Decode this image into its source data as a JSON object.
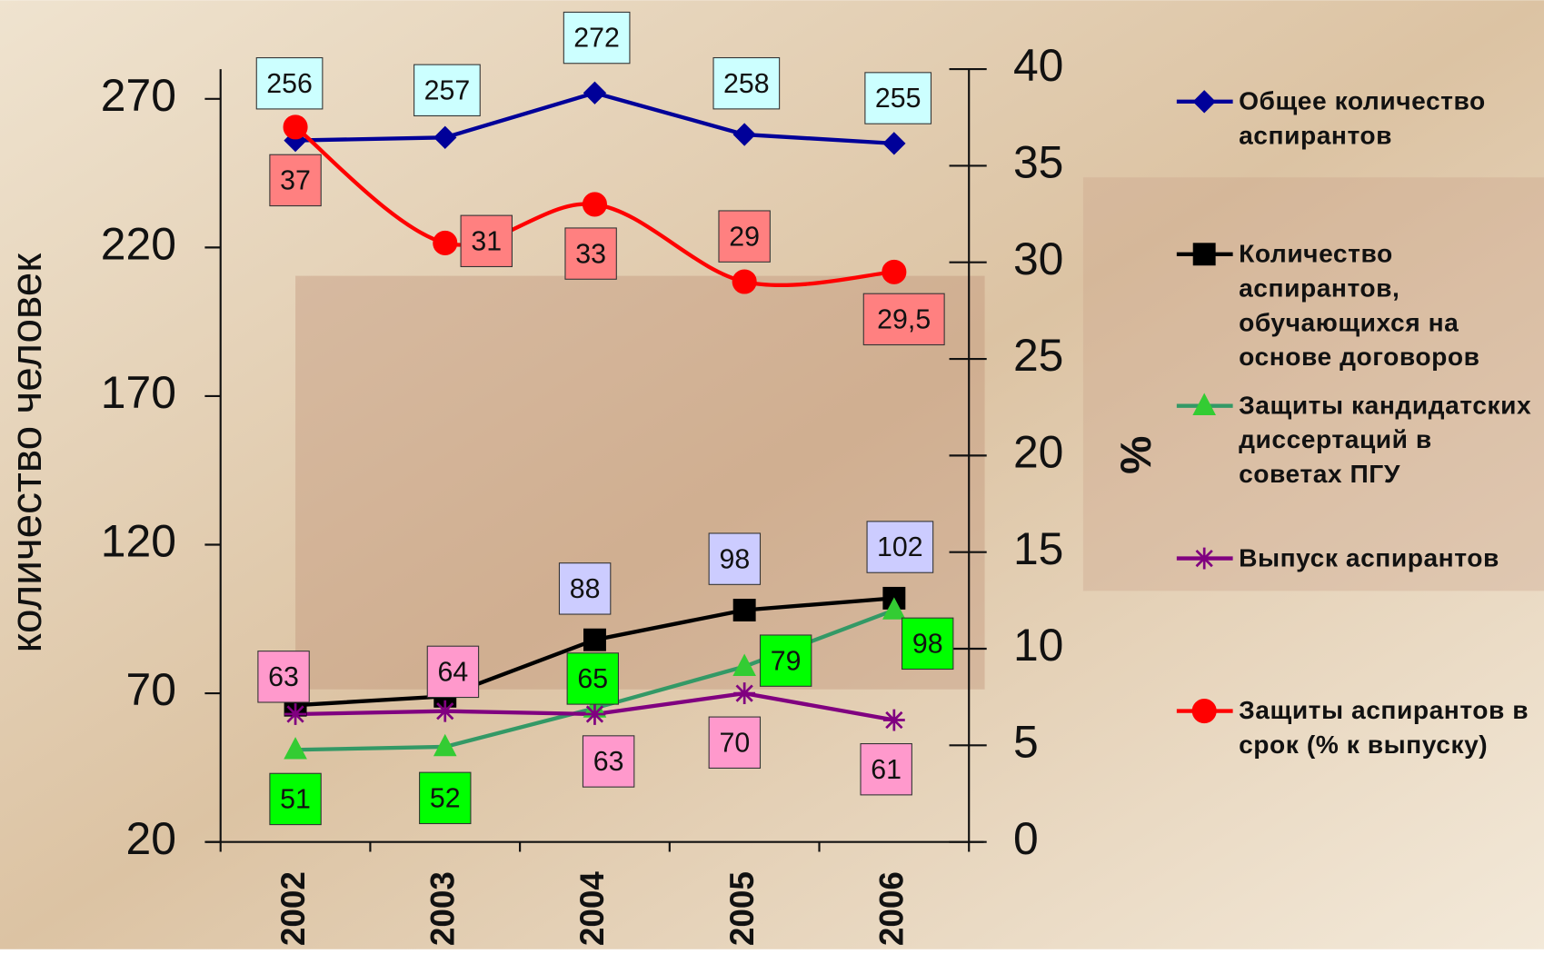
{
  "chart_data": {
    "type": "line",
    "y_label": "количество человек",
    "y2_label": "%",
    "categories": [
      "2002",
      "2003",
      "2004",
      "2005",
      "2006"
    ],
    "ylim": [
      20,
      280
    ],
    "yticks": [
      20,
      70,
      120,
      170,
      220,
      270
    ],
    "y2lim": [
      0,
      40
    ],
    "y2ticks": [
      0,
      5,
      10,
      15,
      20,
      25,
      30,
      35,
      40
    ],
    "legend": "right",
    "series": [
      {
        "name": "Общее количество аспирантов",
        "color": "#000099",
        "marker": "diamond",
        "label_color": "#ccffff",
        "values": [
          256,
          257,
          272,
          258,
          255
        ]
      },
      {
        "name": "Количество аспирантов, обучающихся на основе договоров",
        "color": "#000000",
        "marker": "square",
        "label_color": "#ccccff",
        "values": [
          66,
          69,
          88,
          98,
          102
        ],
        "value_labels": [
          null,
          null,
          "88",
          "98",
          "102"
        ]
      },
      {
        "name": "Защиты кандидатских диссертаций в советах ПГУ",
        "color": "#339966",
        "marker": "triangle",
        "label_color": "#00ff00",
        "values": [
          51,
          52,
          65,
          79,
          98
        ]
      },
      {
        "name": "Выпуск аспирантов",
        "color": "#800080",
        "marker": "star",
        "label_color": "#ff99cc",
        "values": [
          63,
          64,
          63,
          70,
          61
        ]
      },
      {
        "name": "Защиты аспирантов в срок (% к выпуску)",
        "color": "#ff0000",
        "marker": "circle",
        "label_color": "#ff8080",
        "axis": "y2",
        "smooth": true,
        "values": [
          37,
          31,
          33,
          29,
          29.5
        ],
        "value_labels": [
          "37",
          "31",
          "33",
          "29",
          "29,5"
        ]
      }
    ]
  }
}
